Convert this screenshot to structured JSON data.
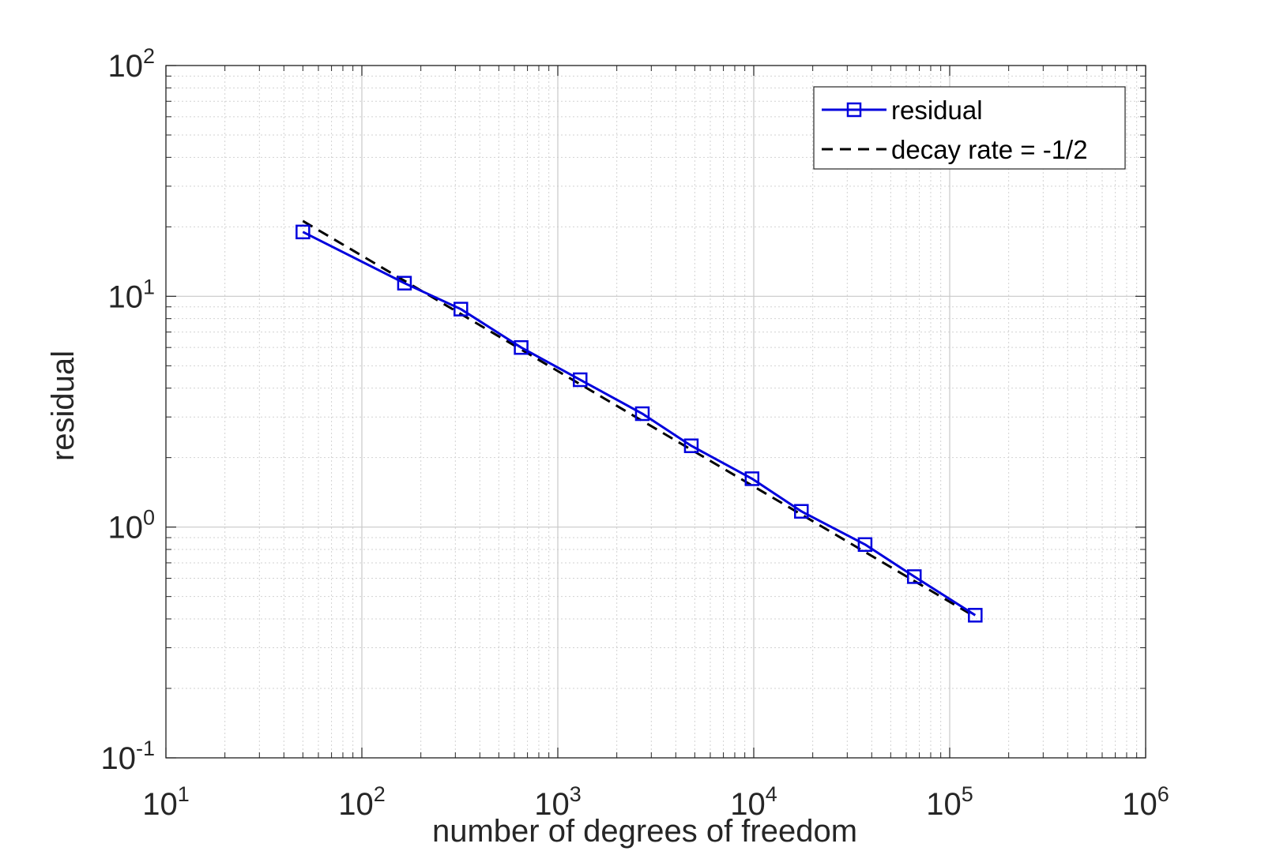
{
  "chart_data": {
    "type": "line",
    "xscale": "log",
    "yscale": "log",
    "xlabel": "number of degrees of freedom",
    "ylabel": "residual",
    "xlim": [
      10,
      1000000
    ],
    "ylim": [
      0.1,
      100
    ],
    "x_ticks": [
      {
        "base": "10",
        "exp": "1",
        "value": 10
      },
      {
        "base": "10",
        "exp": "2",
        "value": 100
      },
      {
        "base": "10",
        "exp": "3",
        "value": 1000
      },
      {
        "base": "10",
        "exp": "4",
        "value": 10000
      },
      {
        "base": "10",
        "exp": "5",
        "value": 100000
      },
      {
        "base": "10",
        "exp": "6",
        "value": 1000000
      }
    ],
    "y_ticks": [
      {
        "base": "10",
        "exp": "-1",
        "value": 0.1
      },
      {
        "base": "10",
        "exp": "0",
        "value": 1
      },
      {
        "base": "10",
        "exp": "1",
        "value": 10
      },
      {
        "base": "10",
        "exp": "2",
        "value": 100
      }
    ],
    "grid": true,
    "minor_grid": true,
    "legend_position": "top-right",
    "series": [
      {
        "name": "residual",
        "color": "#0000dd",
        "line_style": "solid",
        "marker": "square",
        "x": [
          50,
          165,
          320,
          650,
          1300,
          2700,
          4800,
          9800,
          17500,
          37000,
          66000,
          135000
        ],
        "y": [
          19,
          11.4,
          8.8,
          6.0,
          4.35,
          3.1,
          2.25,
          1.62,
          1.17,
          0.84,
          0.61,
          0.415
        ]
      },
      {
        "name": "decay rate = -1/2",
        "color": "#000000",
        "line_style": "dashed",
        "marker": "none",
        "x": [
          50,
          130000
        ],
        "y": [
          21.2,
          0.416
        ]
      }
    ]
  }
}
